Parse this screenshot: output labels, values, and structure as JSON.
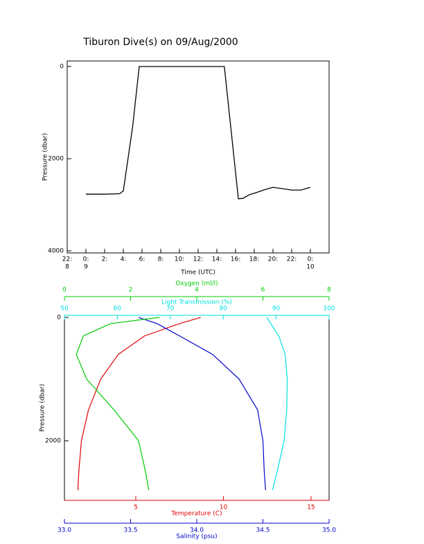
{
  "chart_data": [
    {
      "type": "line",
      "title": "Tiburon Dive(s) on 09/Aug/2000",
      "xlabel": "Time (UTC)",
      "ylabel": "Pressure (dbar)",
      "xlim": [
        -2,
        26
      ],
      "ylim": [
        4045,
        -120
      ],
      "xticks": [
        {
          "value": -2,
          "label": "22:",
          "date": "8"
        },
        {
          "value": 0,
          "label": "0:",
          "date": "9"
        },
        {
          "value": 2,
          "label": "2:"
        },
        {
          "value": 4,
          "label": "4:"
        },
        {
          "value": 6,
          "label": "6:"
        },
        {
          "value": 8,
          "label": "8:"
        },
        {
          "value": 10,
          "label": "10:"
        },
        {
          "value": 12,
          "label": "12:"
        },
        {
          "value": 14,
          "label": "14:"
        },
        {
          "value": 16,
          "label": "16:"
        },
        {
          "value": 18,
          "label": "18:"
        },
        {
          "value": 20,
          "label": "20:"
        },
        {
          "value": 22,
          "label": "22:"
        },
        {
          "value": 24,
          "label": "0:",
          "date": "10"
        }
      ],
      "yticks": [
        0,
        2000,
        4000
      ],
      "x": [
        0,
        2,
        3.6,
        4.0,
        5.0,
        5.7,
        8,
        12,
        14.8,
        16.3,
        16.8,
        17.5,
        18,
        19,
        20,
        21,
        22,
        23,
        24
      ],
      "series": [
        {
          "color": "#000000",
          "values": [
            2770,
            2770,
            2760,
            2700,
            1300,
            0,
            0,
            0,
            0,
            2870,
            2860,
            2780,
            2750,
            2680,
            2620,
            2650,
            2680,
            2680,
            2620
          ]
        }
      ]
    },
    {
      "type": "profile",
      "ylabel": "Pressure (dbar)",
      "ylim": [
        2966,
        -34
      ],
      "yticks": [
        0,
        2000
      ],
      "y": [
        0,
        100,
        300,
        600,
        1000,
        1500,
        2000,
        2500,
        2800
      ],
      "series": [
        {
          "name": "Temperature (C)",
          "color": "#e00000",
          "position": "bottom",
          "xlim": [
            0.93,
            16.03
          ],
          "xticks": [
            5,
            10,
            15
          ],
          "values": [
            8.7,
            7.5,
            5.5,
            4.0,
            3.0,
            2.3,
            1.9,
            1.75,
            1.7
          ]
        },
        {
          "name": "Salinity (psu)",
          "color": "#0000cc",
          "position": "bottom2",
          "xlim": [
            33,
            35
          ],
          "xticks": [
            {
              "value": 33,
              "label": "33.0"
            },
            {
              "value": 33.5,
              "label": "33.5"
            },
            {
              "value": 34,
              "label": "34.0"
            },
            {
              "value": 34.5,
              "label": "34.5"
            },
            {
              "value": 35,
              "label": "35.0"
            }
          ],
          "values": [
            33.56,
            33.7,
            33.87,
            34.12,
            34.32,
            34.46,
            34.5,
            34.51,
            34.52
          ]
        },
        {
          "name": "Oxygen (ml/l)",
          "color": "#00cc00",
          "position": "top2",
          "xlim": [
            0,
            8
          ],
          "xticks": [
            0,
            2,
            4,
            6,
            8
          ],
          "values": [
            2.87,
            1.4,
            0.57,
            0.36,
            0.67,
            1.5,
            2.24,
            2.45,
            2.55
          ]
        },
        {
          "name": "Light Transmission (%)",
          "color": "#00e0e0",
          "position": "top",
          "xlim": [
            50,
            100
          ],
          "xticks": [
            50,
            60,
            70,
            80,
            90,
            100
          ],
          "values": [
            88.2,
            89,
            90.5,
            91.7,
            92.1,
            92,
            91.5,
            90.2,
            89.3
          ]
        }
      ]
    }
  ]
}
